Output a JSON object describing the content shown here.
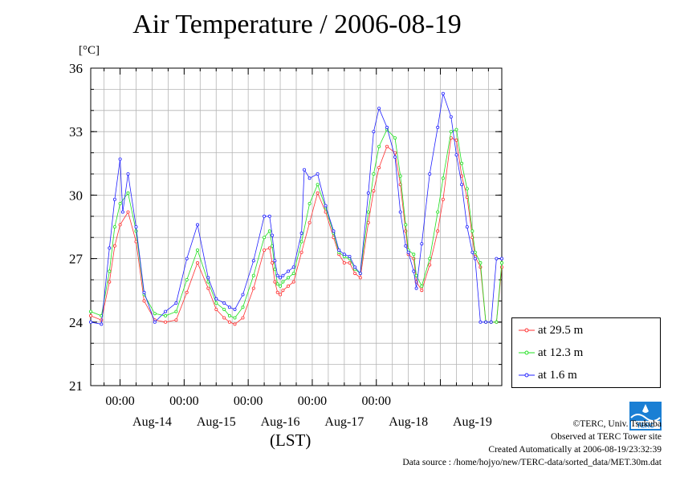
{
  "chart_data": {
    "type": "line",
    "title": "Air Temperature / 2006-08-19",
    "ylabel": "[°C]",
    "xlabel": "(LST)",
    "ylim": [
      21,
      36
    ],
    "yticks": [
      21,
      24,
      27,
      30,
      33,
      36
    ],
    "xlim": [
      "2006-08-13 13:00",
      "2006-08-19 23:00"
    ],
    "time_tick_labels": [
      "00:00",
      "00:00",
      "00:00",
      "00:00",
      "00:00"
    ],
    "date_labels": [
      "Aug-14",
      "Aug-15",
      "Aug-16",
      "Aug-17",
      "Aug-18",
      "Aug-19"
    ],
    "grid": true,
    "legend_position": "bottom-right outside",
    "series": [
      {
        "name": "at 29.5 m",
        "color": "#ff3030",
        "x": [
          "2006-08-13 13:00",
          "2006-08-13 17:00",
          "2006-08-13 20:00",
          "2006-08-13 22:00",
          "2006-08-14 00:00",
          "2006-08-14 03:00",
          "2006-08-14 06:00",
          "2006-08-14 09:00",
          "2006-08-14 13:00",
          "2006-08-14 17:00",
          "2006-08-14 21:00",
          "2006-08-15 01:00",
          "2006-08-15 05:00",
          "2006-08-15 09:00",
          "2006-08-15 12:00",
          "2006-08-15 15:00",
          "2006-08-15 17:00",
          "2006-08-15 19:00",
          "2006-08-15 22:00",
          "2006-08-16 02:00",
          "2006-08-16 06:00",
          "2006-08-16 08:00",
          "2006-08-16 09:00",
          "2006-08-16 10:00",
          "2006-08-16 11:00",
          "2006-08-16 12:00",
          "2006-08-16 13:00",
          "2006-08-16 15:00",
          "2006-08-16 17:00",
          "2006-08-16 20:00",
          "2006-08-16 23:00",
          "2006-08-17 02:00",
          "2006-08-17 05:00",
          "2006-08-17 08:00",
          "2006-08-17 10:00",
          "2006-08-17 12:00",
          "2006-08-17 14:00",
          "2006-08-17 16:00",
          "2006-08-17 18:00",
          "2006-08-17 21:00",
          "2006-08-17 23:00",
          "2006-08-18 01:00",
          "2006-08-18 04:00",
          "2006-08-18 07:00",
          "2006-08-18 09:00",
          "2006-08-18 11:00",
          "2006-08-18 12:00",
          "2006-08-18 14:00",
          "2006-08-18 15:00",
          "2006-08-18 17:00",
          "2006-08-18 20:00",
          "2006-08-18 23:00",
          "2006-08-19 01:00",
          "2006-08-19 04:00",
          "2006-08-19 06:00",
          "2006-08-19 08:00",
          "2006-08-19 10:00",
          "2006-08-19 12:00",
          "2006-08-19 13:00",
          "2006-08-19 15:00",
          "2006-08-19 17:00",
          "2006-08-19 19:00",
          "2006-08-19 21:00",
          "2006-08-19 23:00"
        ],
        "y": [
          24.3,
          24.1,
          25.9,
          27.6,
          28.6,
          29.2,
          27.8,
          25.0,
          24.1,
          24.0,
          24.1,
          25.4,
          26.8,
          25.6,
          24.6,
          24.2,
          24.0,
          23.9,
          24.2,
          25.6,
          27.4,
          27.5,
          26.8,
          25.9,
          25.4,
          25.3,
          25.5,
          25.7,
          25.9,
          27.3,
          28.7,
          30.1,
          29.2,
          28.0,
          27.2,
          26.8,
          26.8,
          26.3,
          26.1,
          28.7,
          30.2,
          31.3,
          32.3,
          32.0,
          30.5,
          28.3,
          27.2,
          27.0,
          25.9,
          25.5,
          26.7,
          28.3,
          29.8,
          32.7,
          32.6,
          30.9,
          29.9,
          28.0,
          27.1,
          26.6,
          24.0,
          24.0,
          24.0,
          26.6
        ]
      },
      {
        "name": "at 12.3 m",
        "color": "#20e020",
        "x": [
          "2006-08-13 13:00",
          "2006-08-13 17:00",
          "2006-08-13 20:00",
          "2006-08-13 22:00",
          "2006-08-14 00:00",
          "2006-08-14 03:00",
          "2006-08-14 06:00",
          "2006-08-14 09:00",
          "2006-08-14 13:00",
          "2006-08-14 17:00",
          "2006-08-14 21:00",
          "2006-08-15 01:00",
          "2006-08-15 05:00",
          "2006-08-15 09:00",
          "2006-08-15 12:00",
          "2006-08-15 15:00",
          "2006-08-15 17:00",
          "2006-08-15 19:00",
          "2006-08-15 22:00",
          "2006-08-16 02:00",
          "2006-08-16 06:00",
          "2006-08-16 08:00",
          "2006-08-16 09:00",
          "2006-08-16 10:00",
          "2006-08-16 11:00",
          "2006-08-16 12:00",
          "2006-08-16 13:00",
          "2006-08-16 15:00",
          "2006-08-16 17:00",
          "2006-08-16 20:00",
          "2006-08-16 23:00",
          "2006-08-17 02:00",
          "2006-08-17 05:00",
          "2006-08-17 08:00",
          "2006-08-17 10:00",
          "2006-08-17 12:00",
          "2006-08-17 14:00",
          "2006-08-17 16:00",
          "2006-08-17 18:00",
          "2006-08-17 21:00",
          "2006-08-17 23:00",
          "2006-08-18 01:00",
          "2006-08-18 04:00",
          "2006-08-18 07:00",
          "2006-08-18 09:00",
          "2006-08-18 11:00",
          "2006-08-18 12:00",
          "2006-08-18 14:00",
          "2006-08-18 15:00",
          "2006-08-18 17:00",
          "2006-08-18 20:00",
          "2006-08-18 23:00",
          "2006-08-19 01:00",
          "2006-08-19 04:00",
          "2006-08-19 06:00",
          "2006-08-19 08:00",
          "2006-08-19 10:00",
          "2006-08-19 12:00",
          "2006-08-19 13:00",
          "2006-08-19 15:00",
          "2006-08-19 17:00",
          "2006-08-19 19:00",
          "2006-08-19 21:00",
          "2006-08-19 23:00"
        ],
        "y": [
          24.5,
          24.3,
          26.4,
          28.5,
          29.6,
          30.1,
          28.3,
          25.3,
          24.4,
          24.3,
          24.5,
          26.0,
          27.4,
          25.9,
          24.9,
          24.6,
          24.3,
          24.2,
          24.7,
          26.2,
          28.0,
          28.3,
          27.6,
          26.5,
          25.8,
          25.7,
          25.9,
          26.1,
          26.3,
          27.8,
          29.6,
          30.5,
          29.4,
          28.2,
          27.3,
          27.1,
          27.0,
          26.5,
          26.3,
          29.2,
          31.0,
          32.3,
          33.1,
          32.7,
          30.9,
          28.6,
          27.4,
          27.2,
          26.2,
          25.7,
          27.0,
          29.2,
          30.8,
          33.0,
          33.1,
          31.5,
          30.3,
          28.3,
          27.3,
          26.8,
          24.0,
          24.0,
          24.0,
          26.8
        ]
      },
      {
        "name": "at 1.6 m",
        "color": "#2020ff",
        "x": [
          "2006-08-13 13:00",
          "2006-08-13 17:00",
          "2006-08-13 20:00",
          "2006-08-13 22:00",
          "2006-08-14 00:00",
          "2006-08-14 01:00",
          "2006-08-14 03:00",
          "2006-08-14 06:00",
          "2006-08-14 09:00",
          "2006-08-14 13:00",
          "2006-08-14 17:00",
          "2006-08-14 21:00",
          "2006-08-15 01:00",
          "2006-08-15 05:00",
          "2006-08-15 09:00",
          "2006-08-15 12:00",
          "2006-08-15 15:00",
          "2006-08-15 17:00",
          "2006-08-15 19:00",
          "2006-08-15 22:00",
          "2006-08-16 02:00",
          "2006-08-16 06:00",
          "2006-08-16 08:00",
          "2006-08-16 09:00",
          "2006-08-16 10:00",
          "2006-08-16 11:00",
          "2006-08-16 12:00",
          "2006-08-16 13:00",
          "2006-08-16 15:00",
          "2006-08-16 17:00",
          "2006-08-16 20:00",
          "2006-08-16 21:00",
          "2006-08-16 23:00",
          "2006-08-17 02:00",
          "2006-08-17 05:00",
          "2006-08-17 08:00",
          "2006-08-17 10:00",
          "2006-08-17 12:00",
          "2006-08-17 14:00",
          "2006-08-17 16:00",
          "2006-08-17 18:00",
          "2006-08-17 21:00",
          "2006-08-17 23:00",
          "2006-08-18 01:00",
          "2006-08-18 04:00",
          "2006-08-18 07:00",
          "2006-08-18 09:00",
          "2006-08-18 11:00",
          "2006-08-18 12:00",
          "2006-08-18 14:00",
          "2006-08-18 15:00",
          "2006-08-18 17:00",
          "2006-08-18 20:00",
          "2006-08-18 23:00",
          "2006-08-19 01:00",
          "2006-08-19 04:00",
          "2006-08-19 06:00",
          "2006-08-19 08:00",
          "2006-08-19 10:00",
          "2006-08-19 12:00",
          "2006-08-19 13:00",
          "2006-08-19 15:00",
          "2006-08-19 17:00",
          "2006-08-19 19:00",
          "2006-08-19 21:00",
          "2006-08-19 23:00"
        ],
        "y": [
          24.0,
          23.9,
          27.5,
          29.8,
          31.7,
          29.2,
          31.0,
          28.5,
          25.4,
          24.0,
          24.5,
          24.9,
          27.0,
          28.6,
          26.1,
          25.1,
          24.9,
          24.7,
          24.6,
          25.3,
          26.9,
          29.0,
          29.0,
          28.1,
          26.9,
          26.2,
          26.1,
          26.2,
          26.4,
          26.6,
          28.2,
          31.2,
          30.8,
          31.0,
          29.5,
          28.3,
          27.4,
          27.2,
          27.1,
          26.6,
          26.3,
          30.1,
          33.0,
          34.1,
          33.2,
          31.8,
          29.2,
          27.6,
          27.3,
          26.4,
          25.6,
          27.7,
          31.0,
          33.2,
          34.8,
          33.7,
          31.9,
          30.5,
          28.5,
          27.3,
          27.0,
          24.0,
          24.0,
          24.0,
          27.0,
          27.0
        ]
      }
    ]
  },
  "legend": [
    {
      "label": "at 29.5 m",
      "color": "#ff3030"
    },
    {
      "label": "at 12.3 m",
      "color": "#20e020"
    },
    {
      "label": "at 1.6 m",
      "color": "#2020ff"
    }
  ],
  "credits": {
    "copyright": "©TERC, Univ. Tsukuba",
    "site": "Observed at TERC Tower site",
    "created": "Created Automatically at 2006-08-19/23:32:39",
    "source": "Data source : /home/hojyo/new/TERC-data/sorted_data/MET.30m.dat"
  },
  "logo": {
    "text": "TERC"
  }
}
